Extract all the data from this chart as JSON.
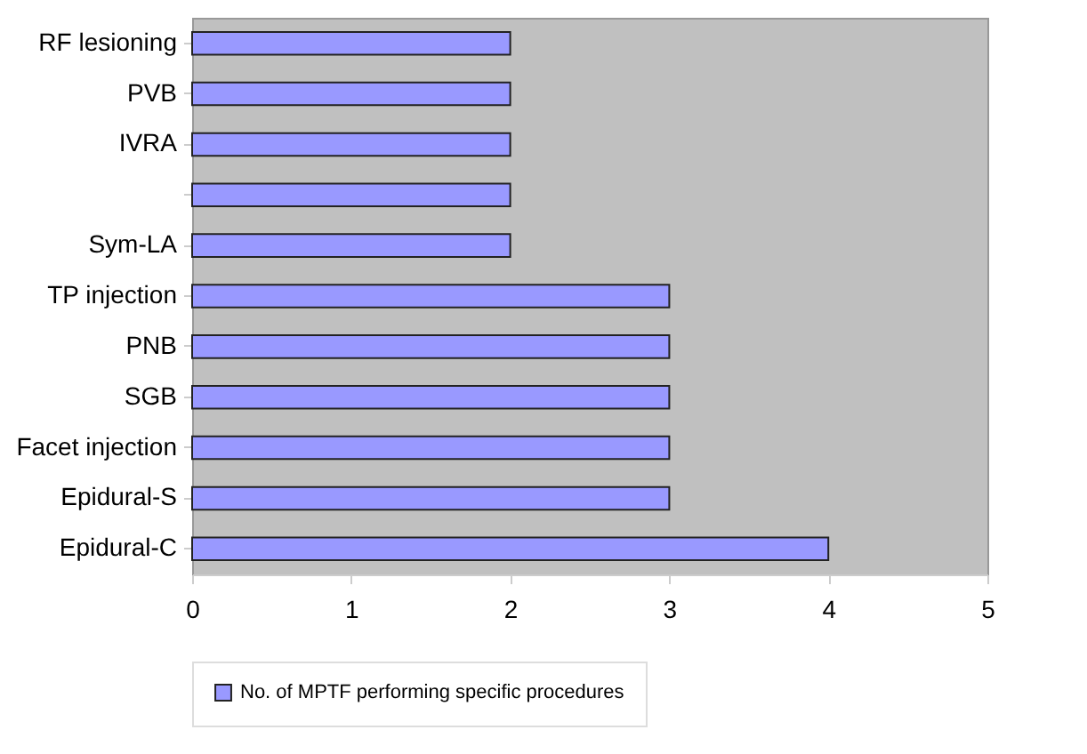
{
  "chart_data": {
    "type": "bar",
    "orientation": "horizontal",
    "categories": [
      "RF lesioning",
      "PVB",
      "IVRA",
      null,
      "Sym-LA",
      "TP injection",
      "PNB",
      "SGB",
      "Facet injection",
      "Epidural-S",
      "Epidural-C"
    ],
    "series": [
      {
        "name": "No. of MPTF performing specific procedures",
        "color": "#9999ff",
        "values": [
          2,
          2,
          2,
          2,
          2,
          3,
          3,
          3,
          3,
          3,
          4
        ]
      }
    ],
    "xlim": [
      0,
      5
    ],
    "xticks": [
      0,
      1,
      2,
      3,
      4,
      5
    ],
    "grid": false,
    "legend": "bottom"
  }
}
